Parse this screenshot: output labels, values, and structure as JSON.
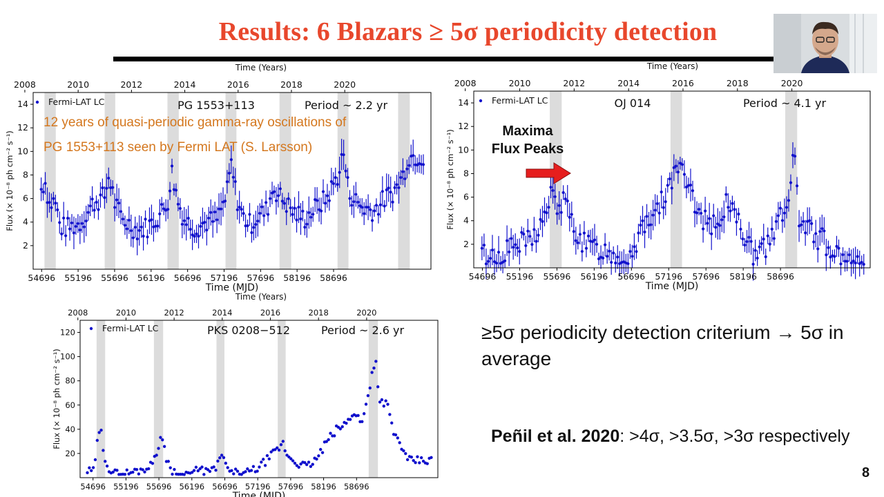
{
  "slide": {
    "title": "Results: 6 Blazars  ≥ 5σ periodicity detection",
    "criterion_text": "≥5σ periodicity detection criterium → 5σ in average",
    "penil_bold": "Peñil et al. 2020",
    "penil_rest": ": >4σ, >3.5σ, >3σ respectively",
    "slide_number": "8",
    "annotation_line1": "12 years of quasi-periodic gamma-ray oscillations of",
    "annotation_line2": "PG 1553+113 seen by Fermi LAT (S. Larsson)",
    "maxima_line1": "Maxima",
    "maxima_line2": "Flux Peaks",
    "colors": {
      "title": "#e8472c",
      "annotation": "#d4771e",
      "points": "#1010cc",
      "arrow": "#e61e1e",
      "shade": "#dcdcdc"
    }
  },
  "chart_data": [
    {
      "type": "scatter",
      "title": "PG 1553+113",
      "period_label": "Period ~ 2.2 yr",
      "legend": "Fermi-LAT LC",
      "xlabel": "Time (MJD)",
      "ylabel": "Flux (× 10⁻⁸ ph cm⁻² s⁻¹)",
      "top_axis_label": "Time (Years)",
      "xlim": [
        54580,
        60030
      ],
      "ylim": [
        0,
        15
      ],
      "x_ticks": [
        54696,
        55196,
        55696,
        56196,
        56696,
        57196,
        57696,
        58196,
        58696
      ],
      "y_ticks": [
        2,
        4,
        6,
        8,
        10,
        12,
        14
      ],
      "year_ticks": [
        2008,
        2010,
        2012,
        2014,
        2016,
        2018,
        2020
      ],
      "shaded_bands": [
        [
          54735,
          54890
        ],
        [
          55560,
          55705
        ],
        [
          56420,
          56575
        ],
        [
          57215,
          57365
        ],
        [
          57955,
          58115
        ],
        [
          58750,
          58900
        ],
        [
          59580,
          59740
        ]
      ],
      "errorbars": true,
      "anchors": [
        [
          54690,
          6.8
        ],
        [
          54740,
          7.6
        ],
        [
          54800,
          5.5
        ],
        [
          54880,
          5.8
        ],
        [
          54950,
          3.6
        ],
        [
          55050,
          3.5
        ],
        [
          55200,
          3.8
        ],
        [
          55300,
          4.5
        ],
        [
          55400,
          5.6
        ],
        [
          55560,
          6.2
        ],
        [
          55620,
          8.0
        ],
        [
          55700,
          5.6
        ],
        [
          55800,
          4.2
        ],
        [
          55900,
          3.8
        ],
        [
          56000,
          3.3
        ],
        [
          56150,
          3.6
        ],
        [
          56300,
          4.5
        ],
        [
          56420,
          5.6
        ],
        [
          56480,
          8.3
        ],
        [
          56560,
          5.8
        ],
        [
          56650,
          4.2
        ],
        [
          56800,
          3.5
        ],
        [
          56950,
          4.0
        ],
        [
          57100,
          4.2
        ],
        [
          57230,
          6.2
        ],
        [
          57290,
          9.0
        ],
        [
          57370,
          6.0
        ],
        [
          57450,
          4.5
        ],
        [
          57550,
          3.8
        ],
        [
          57650,
          4.4
        ],
        [
          57780,
          5.0
        ],
        [
          57870,
          7.0
        ],
        [
          57950,
          6.2
        ],
        [
          58020,
          5.8
        ],
        [
          58150,
          4.8
        ],
        [
          58300,
          4.3
        ],
        [
          58450,
          5.2
        ],
        [
          58600,
          6.0
        ],
        [
          58770,
          8.2
        ],
        [
          58830,
          10.0
        ],
        [
          58900,
          6.6
        ],
        [
          59000,
          5.8
        ],
        [
          59100,
          5.2
        ],
        [
          59250,
          5.0
        ],
        [
          59400,
          6.0
        ],
        [
          59550,
          6.8
        ],
        [
          59650,
          8.0
        ],
        [
          59720,
          9.6
        ]
      ],
      "noise": 0.9
    },
    {
      "type": "scatter",
      "title": "OJ 014",
      "period_label": "Period ~ 4.1 yr",
      "legend": "Fermi-LAT LC",
      "xlabel": "Time (MJD)",
      "ylabel": "Flux (× 10⁻⁸ ph cm⁻² s⁻¹)",
      "top_axis_label": "Time (Years)",
      "xlim": [
        54580,
        59900
      ],
      "ylim": [
        0,
        15
      ],
      "x_ticks": [
        54696,
        55196,
        55696,
        56196,
        56696,
        57196,
        57696,
        58196,
        58696
      ],
      "y_ticks": [
        2,
        4,
        6,
        8,
        10,
        12,
        14
      ],
      "year_ticks": [
        2008,
        2010,
        2012,
        2014,
        2016,
        2018,
        2020
      ],
      "shaded_bands": [
        [
          55600,
          55760
        ],
        [
          57220,
          57375
        ],
        [
          58760,
          58920
        ]
      ],
      "errorbars": true,
      "anchors": [
        [
          54690,
          1.2
        ],
        [
          54850,
          0.9
        ],
        [
          55000,
          1.4
        ],
        [
          55200,
          2.0
        ],
        [
          55350,
          2.4
        ],
        [
          55500,
          3.8
        ],
        [
          55620,
          6.2
        ],
        [
          55700,
          5.2
        ],
        [
          55800,
          5.6
        ],
        [
          55900,
          3.8
        ],
        [
          56050,
          2.0
        ],
        [
          56250,
          1.6
        ],
        [
          56450,
          1.2
        ],
        [
          56600,
          0.8
        ],
        [
          56750,
          2.2
        ],
        [
          56900,
          4.0
        ],
        [
          57000,
          5.0
        ],
        [
          57100,
          5.8
        ],
        [
          57200,
          6.5
        ],
        [
          57300,
          9.0
        ],
        [
          57380,
          8.0
        ],
        [
          57500,
          6.0
        ],
        [
          57650,
          4.2
        ],
        [
          57800,
          3.8
        ],
        [
          57900,
          4.2
        ],
        [
          58000,
          5.8
        ],
        [
          58080,
          5.6
        ],
        [
          58200,
          2.0
        ],
        [
          58350,
          1.2
        ],
        [
          58500,
          1.6
        ],
        [
          58650,
          3.8
        ],
        [
          58800,
          5.0
        ],
        [
          58870,
          10.0
        ],
        [
          58960,
          3.5
        ],
        [
          59100,
          3.0
        ],
        [
          59250,
          2.4
        ],
        [
          59420,
          1.2
        ],
        [
          59520,
          0.6
        ]
      ],
      "noise": 1.0
    },
    {
      "type": "scatter",
      "title": "PKS 0208−512",
      "period_label": "Period ~ 2.6 yr",
      "legend": "Fermi-LAT LC",
      "xlabel": "Time (MJD)",
      "ylabel": "Flux (× 10⁻⁸ ph cm⁻² s⁻¹)",
      "top_axis_label": "Time (Years)",
      "xlim": [
        54500,
        59930
      ],
      "ylim": [
        0,
        130
      ],
      "x_ticks": [
        54696,
        55196,
        55696,
        56196,
        56696,
        57196,
        57696,
        58196,
        58696
      ],
      "y_ticks": [
        20,
        40,
        60,
        80,
        100,
        120
      ],
      "year_ticks": [
        2008,
        2010,
        2012,
        2014,
        2016,
        2018,
        2020
      ],
      "shaded_bands": [
        [
          54750,
          54880
        ],
        [
          55620,
          55760
        ],
        [
          56570,
          56690
        ],
        [
          57500,
          57620
        ],
        [
          58880,
          59020
        ]
      ],
      "errorbars": false,
      "anchors": [
        [
          54700,
          5
        ],
        [
          54760,
          28
        ],
        [
          54810,
          41
        ],
        [
          54860,
          20
        ],
        [
          54950,
          6
        ],
        [
          55050,
          3
        ],
        [
          55250,
          4
        ],
        [
          55450,
          7
        ],
        [
          55580,
          10
        ],
        [
          55660,
          22
        ],
        [
          55730,
          34
        ],
        [
          55800,
          18
        ],
        [
          55900,
          5
        ],
        [
          56100,
          3
        ],
        [
          56300,
          6
        ],
        [
          56500,
          5
        ],
        [
          56600,
          12
        ],
        [
          56650,
          20
        ],
        [
          56700,
          10
        ],
        [
          56800,
          4
        ],
        [
          57000,
          3
        ],
        [
          57200,
          8
        ],
        [
          57400,
          18
        ],
        [
          57530,
          25
        ],
        [
          57580,
          28
        ],
        [
          57650,
          18
        ],
        [
          57800,
          12
        ],
        [
          57950,
          9
        ],
        [
          58100,
          16
        ],
        [
          58250,
          30
        ],
        [
          58400,
          40
        ],
        [
          58550,
          45
        ],
        [
          58650,
          55
        ],
        [
          58780,
          45
        ],
        [
          58880,
          70
        ],
        [
          58930,
          88
        ],
        [
          58990,
          95
        ],
        [
          59050,
          62
        ],
        [
          59150,
          63
        ],
        [
          59250,
          38
        ],
        [
          59380,
          26
        ],
        [
          59460,
          14
        ]
      ],
      "noise": 3.5
    }
  ]
}
